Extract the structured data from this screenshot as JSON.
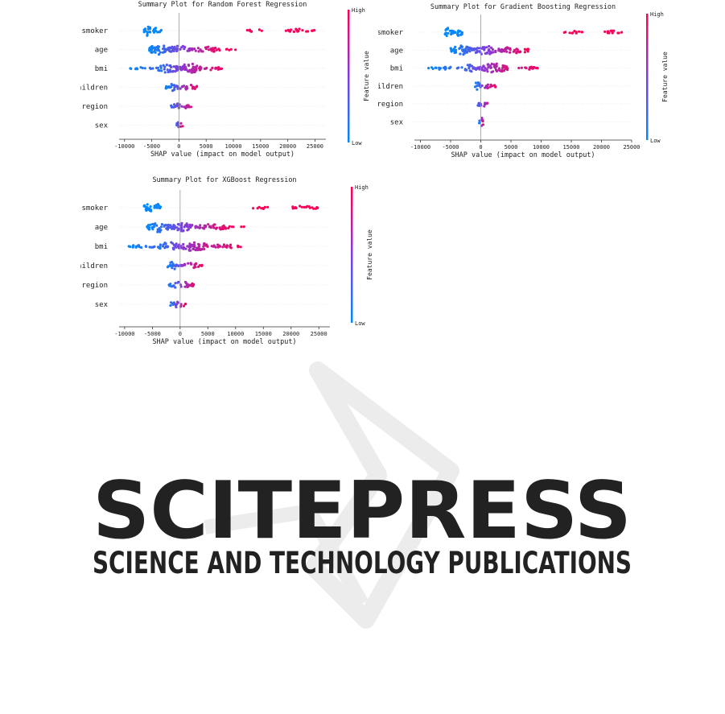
{
  "chart_data": [
    {
      "type": "scatter",
      "subtype": "shap-beeswarm",
      "title": "Summary Plot for Random Forest Regression",
      "xlabel": "SHAP value (impact on model output)",
      "xlim": [
        -11000,
        27000
      ],
      "xticks": [
        -10000,
        -5000,
        0,
        5000,
        10000,
        15000,
        20000,
        25000
      ],
      "colorbar": {
        "label": "Feature value",
        "high": "High",
        "low": "Low",
        "high_color": "#ff0052",
        "low_color": "#008bfb"
      },
      "features": [
        {
          "name": "smoker",
          "clusters": [
            {
              "lo": -6500,
              "hi": -5000,
              "density": 1.0,
              "v0": 0.0,
              "v1": 0.05
            },
            {
              "lo": -4700,
              "hi": -3200,
              "density": 0.8,
              "v0": 0.0,
              "v1": 0.05
            },
            {
              "lo": 12500,
              "hi": 15500,
              "density": 0.25,
              "v0": 0.95,
              "v1": 1.0
            },
            {
              "lo": 19500,
              "hi": 25000,
              "density": 0.35,
              "v0": 0.95,
              "v1": 1.0
            }
          ]
        },
        {
          "name": "age",
          "clusters": [
            {
              "lo": -5500,
              "hi": -2000,
              "density": 1.0,
              "v0": 0.0,
              "v1": 0.3
            },
            {
              "lo": -2000,
              "hi": 2000,
              "density": 0.8,
              "v0": 0.3,
              "v1": 0.6
            },
            {
              "lo": 2000,
              "hi": 7500,
              "density": 0.55,
              "v0": 0.6,
              "v1": 0.95
            },
            {
              "lo": 7500,
              "hi": 10500,
              "density": 0.15,
              "v0": 0.9,
              "v1": 1.0
            }
          ]
        },
        {
          "name": "bmi",
          "clusters": [
            {
              "lo": -9000,
              "hi": -4000,
              "density": 0.25,
              "v0": 0.0,
              "v1": 0.25
            },
            {
              "lo": -4000,
              "hi": 0,
              "density": 0.8,
              "v0": 0.1,
              "v1": 0.5
            },
            {
              "lo": 0,
              "hi": 4000,
              "density": 0.9,
              "v0": 0.5,
              "v1": 0.8
            },
            {
              "lo": 4000,
              "hi": 8000,
              "density": 0.35,
              "v0": 0.7,
              "v1": 0.95
            }
          ]
        },
        {
          "name": "children",
          "clusters": [
            {
              "lo": -2500,
              "hi": 0,
              "density": 0.7,
              "v0": 0.0,
              "v1": 0.4
            },
            {
              "lo": 0,
              "hi": 3500,
              "density": 0.5,
              "v0": 0.5,
              "v1": 0.95
            }
          ]
        },
        {
          "name": "region",
          "clusters": [
            {
              "lo": -1500,
              "hi": 2500,
              "density": 0.55,
              "v0": 0.2,
              "v1": 0.9
            }
          ]
        },
        {
          "name": "sex",
          "clusters": [
            {
              "lo": -800,
              "hi": 800,
              "density": 0.6,
              "v0": 0.0,
              "v1": 1.0
            }
          ]
        }
      ]
    },
    {
      "type": "scatter",
      "subtype": "shap-beeswarm",
      "title": "Summary Plot for Gradient Boosting Regression",
      "xlabel": "SHAP value (impact on model output)",
      "xlim": [
        -11000,
        25000
      ],
      "xticks": [
        -10000,
        -5000,
        0,
        5000,
        10000,
        15000,
        20000,
        25000
      ],
      "colorbar": {
        "label": "Feature value",
        "high": "High",
        "low": "Low",
        "high_color": "#ff0052",
        "low_color": "#008bfb"
      },
      "features": [
        {
          "name": "smoker",
          "clusters": [
            {
              "lo": -6000,
              "hi": -4500,
              "density": 1.0,
              "v0": 0.0,
              "v1": 0.05
            },
            {
              "lo": -4300,
              "hi": -3000,
              "density": 0.8,
              "v0": 0.0,
              "v1": 0.05
            },
            {
              "lo": 13500,
              "hi": 17000,
              "density": 0.25,
              "v0": 0.95,
              "v1": 1.0
            },
            {
              "lo": 20500,
              "hi": 23500,
              "density": 0.35,
              "v0": 0.95,
              "v1": 1.0
            }
          ]
        },
        {
          "name": "age",
          "clusters": [
            {
              "lo": -5000,
              "hi": -1500,
              "density": 1.0,
              "v0": 0.0,
              "v1": 0.3
            },
            {
              "lo": -1500,
              "hi": 3000,
              "density": 0.8,
              "v0": 0.3,
              "v1": 0.65
            },
            {
              "lo": 3000,
              "hi": 8000,
              "density": 0.6,
              "v0": 0.65,
              "v1": 1.0
            }
          ]
        },
        {
          "name": "bmi",
          "clusters": [
            {
              "lo": -9000,
              "hi": -3500,
              "density": 0.25,
              "v0": 0.0,
              "v1": 0.25
            },
            {
              "lo": -3500,
              "hi": 0,
              "density": 0.7,
              "v0": 0.1,
              "v1": 0.5
            },
            {
              "lo": 0,
              "hi": 4500,
              "density": 0.9,
              "v0": 0.5,
              "v1": 0.85
            },
            {
              "lo": 4500,
              "hi": 9500,
              "density": 0.3,
              "v0": 0.7,
              "v1": 0.95
            }
          ]
        },
        {
          "name": "children",
          "clusters": [
            {
              "lo": -1200,
              "hi": 0,
              "density": 0.8,
              "v0": 0.0,
              "v1": 0.3
            },
            {
              "lo": 0,
              "hi": 2500,
              "density": 0.5,
              "v0": 0.5,
              "v1": 0.95
            }
          ]
        },
        {
          "name": "region",
          "clusters": [
            {
              "lo": -700,
              "hi": 1200,
              "density": 0.55,
              "v0": 0.2,
              "v1": 0.8
            }
          ]
        },
        {
          "name": "sex",
          "clusters": [
            {
              "lo": -300,
              "hi": 500,
              "density": 0.8,
              "v0": 0.0,
              "v1": 1.0
            }
          ]
        }
      ]
    },
    {
      "type": "scatter",
      "subtype": "shap-beeswarm",
      "title": "Summary Plot for XGBoost Regression",
      "xlabel": "SHAP value (impact on model output)",
      "xlim": [
        -11000,
        27000
      ],
      "xticks": [
        -10000,
        -5000,
        0,
        5000,
        10000,
        15000,
        20000,
        25000
      ],
      "colorbar": {
        "label": "Feature value",
        "high": "High",
        "low": "Low",
        "high_color": "#ff0052",
        "low_color": "#008bfb"
      },
      "features": [
        {
          "name": "smoker",
          "clusters": [
            {
              "lo": -6500,
              "hi": -5000,
              "density": 1.0,
              "v0": 0.0,
              "v1": 0.05
            },
            {
              "lo": -4700,
              "hi": -3500,
              "density": 0.8,
              "v0": 0.0,
              "v1": 0.05
            },
            {
              "lo": 13000,
              "hi": 16000,
              "density": 0.25,
              "v0": 0.95,
              "v1": 1.0
            },
            {
              "lo": 20000,
              "hi": 25000,
              "density": 0.35,
              "v0": 0.95,
              "v1": 1.0
            }
          ]
        },
        {
          "name": "age",
          "clusters": [
            {
              "lo": -6000,
              "hi": -2000,
              "density": 1.0,
              "v0": 0.0,
              "v1": 0.3
            },
            {
              "lo": -2000,
              "hi": 2500,
              "density": 0.8,
              "v0": 0.3,
              "v1": 0.6
            },
            {
              "lo": 2500,
              "hi": 9000,
              "density": 0.55,
              "v0": 0.6,
              "v1": 0.95
            },
            {
              "lo": 9000,
              "hi": 12000,
              "density": 0.12,
              "v0": 0.9,
              "v1": 1.0
            }
          ]
        },
        {
          "name": "bmi",
          "clusters": [
            {
              "lo": -9500,
              "hi": -4000,
              "density": 0.3,
              "v0": 0.0,
              "v1": 0.25
            },
            {
              "lo": -4000,
              "hi": 0,
              "density": 0.8,
              "v0": 0.1,
              "v1": 0.5
            },
            {
              "lo": 0,
              "hi": 5000,
              "density": 0.9,
              "v0": 0.5,
              "v1": 0.8
            },
            {
              "lo": 5000,
              "hi": 11000,
              "density": 0.35,
              "v0": 0.7,
              "v1": 0.95
            }
          ]
        },
        {
          "name": "children",
          "clusters": [
            {
              "lo": -2500,
              "hi": 0,
              "density": 0.7,
              "v0": 0.0,
              "v1": 0.4
            },
            {
              "lo": 0,
              "hi": 4000,
              "density": 0.5,
              "v0": 0.5,
              "v1": 0.95
            }
          ]
        },
        {
          "name": "region",
          "clusters": [
            {
              "lo": -2000,
              "hi": 2500,
              "density": 0.6,
              "v0": 0.1,
              "v1": 0.9
            }
          ]
        },
        {
          "name": "sex",
          "clusters": [
            {
              "lo": -2000,
              "hi": 1000,
              "density": 0.6,
              "v0": 0.0,
              "v1": 1.0
            }
          ]
        }
      ]
    }
  ],
  "watermark": {
    "brand": "SCITEPRESS",
    "tagline": "SCIENCE AND TECHNOLOGY PUBLICATIONS",
    "color": "#ececec"
  }
}
